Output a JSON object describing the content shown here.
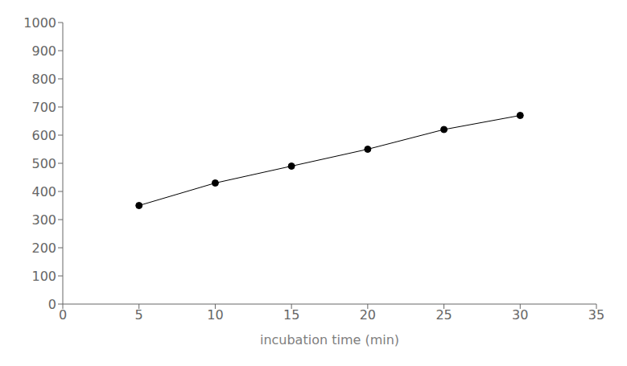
{
  "chart_data": {
    "type": "line",
    "x": [
      5,
      10,
      15,
      20,
      25,
      30
    ],
    "values": [
      350,
      430,
      490,
      550,
      620,
      670
    ],
    "xlim": [
      0,
      35
    ],
    "ylim": [
      0,
      1000
    ],
    "xticks": [
      0,
      5,
      10,
      15,
      20,
      25,
      30,
      35
    ],
    "yticks": [
      0,
      100,
      200,
      300,
      400,
      500,
      600,
      700,
      800,
      900,
      1000
    ],
    "xlabel": "incubation time (min)",
    "color": "black",
    "marker": "circle",
    "grid": false
  }
}
